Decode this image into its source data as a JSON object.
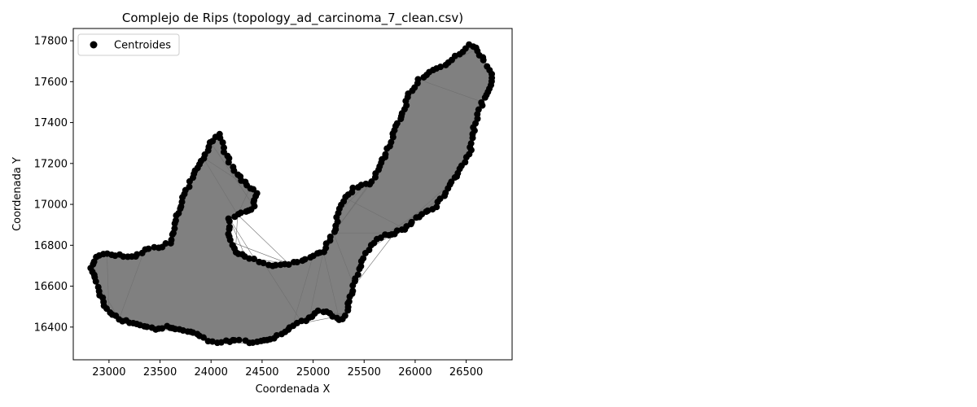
{
  "chart_data": {
    "type": "scatter",
    "title": "Complejo de Rips (topology_ad_carcinoma_7_clean.csv)",
    "xlabel": "Coordenada X",
    "ylabel": "Coordenada Y",
    "xlim": [
      22650,
      26950
    ],
    "ylim": [
      16240,
      17860
    ],
    "xticks": [
      23000,
      23500,
      24000,
      24500,
      25000,
      25500,
      26000,
      26500
    ],
    "yticks": [
      16400,
      16600,
      16800,
      17000,
      17200,
      17400,
      17600,
      17800
    ],
    "grid": false,
    "legend": {
      "position": "top-left",
      "entries": [
        "Centroides"
      ]
    },
    "colors": {
      "points": "#000000",
      "edges": "#808080"
    },
    "boundary": [
      [
        22830,
        16690
      ],
      [
        22880,
        16740
      ],
      [
        22980,
        16760
      ],
      [
        23100,
        16750
      ],
      [
        23250,
        16740
      ],
      [
        23350,
        16780
      ],
      [
        23480,
        16790
      ],
      [
        23600,
        16810
      ],
      [
        23660,
        16940
      ],
      [
        23740,
        17050
      ],
      [
        23820,
        17130
      ],
      [
        23920,
        17230
      ],
      [
        24000,
        17300
      ],
      [
        24080,
        17340
      ],
      [
        24180,
        17200
      ],
      [
        24280,
        17130
      ],
      [
        24380,
        17080
      ],
      [
        24440,
        17060
      ],
      [
        24420,
        16990
      ],
      [
        24340,
        16960
      ],
      [
        24260,
        16950
      ],
      [
        24180,
        16930
      ],
      [
        24180,
        16820
      ],
      [
        24240,
        16770
      ],
      [
        24340,
        16740
      ],
      [
        24430,
        16730
      ],
      [
        24520,
        16710
      ],
      [
        24640,
        16700
      ],
      [
        24760,
        16710
      ],
      [
        24890,
        16730
      ],
      [
        25000,
        16750
      ],
      [
        25100,
        16770
      ],
      [
        25200,
        16860
      ],
      [
        25250,
        16960
      ],
      [
        25320,
        17030
      ],
      [
        25400,
        17080
      ],
      [
        25560,
        17100
      ],
      [
        25620,
        17150
      ],
      [
        25720,
        17250
      ],
      [
        25800,
        17360
      ],
      [
        25880,
        17450
      ],
      [
        25940,
        17540
      ],
      [
        26040,
        17610
      ],
      [
        26140,
        17650
      ],
      [
        26300,
        17680
      ],
      [
        26400,
        17720
      ],
      [
        26520,
        17780
      ],
      [
        26600,
        17760
      ],
      [
        26680,
        17700
      ],
      [
        26740,
        17640
      ],
      [
        26760,
        17600
      ],
      [
        26660,
        17500
      ],
      [
        26580,
        17380
      ],
      [
        26540,
        17260
      ],
      [
        26460,
        17190
      ],
      [
        26360,
        17110
      ],
      [
        26280,
        17040
      ],
      [
        26200,
        16990
      ],
      [
        26100,
        16960
      ],
      [
        26000,
        16930
      ],
      [
        25900,
        16880
      ],
      [
        25800,
        16860
      ],
      [
        25700,
        16850
      ],
      [
        25620,
        16830
      ],
      [
        25540,
        16780
      ],
      [
        25460,
        16700
      ],
      [
        25400,
        16600
      ],
      [
        25360,
        16530
      ],
      [
        25320,
        16460
      ],
      [
        25260,
        16430
      ],
      [
        25160,
        16470
      ],
      [
        25060,
        16480
      ],
      [
        24960,
        16440
      ],
      [
        24880,
        16430
      ],
      [
        24800,
        16410
      ],
      [
        24720,
        16380
      ],
      [
        24620,
        16350
      ],
      [
        24520,
        16330
      ],
      [
        24420,
        16320
      ],
      [
        24330,
        16330
      ],
      [
        24240,
        16340
      ],
      [
        24140,
        16330
      ],
      [
        24050,
        16320
      ],
      [
        23960,
        16330
      ],
      [
        23860,
        16370
      ],
      [
        23760,
        16380
      ],
      [
        23660,
        16390
      ],
      [
        23560,
        16400
      ],
      [
        23460,
        16390
      ],
      [
        23380,
        16400
      ],
      [
        23280,
        16420
      ],
      [
        23200,
        16420
      ],
      [
        23100,
        16440
      ],
      [
        23000,
        16470
      ],
      [
        22940,
        16520
      ],
      [
        22900,
        16580
      ],
      [
        22860,
        16640
      ]
    ]
  }
}
